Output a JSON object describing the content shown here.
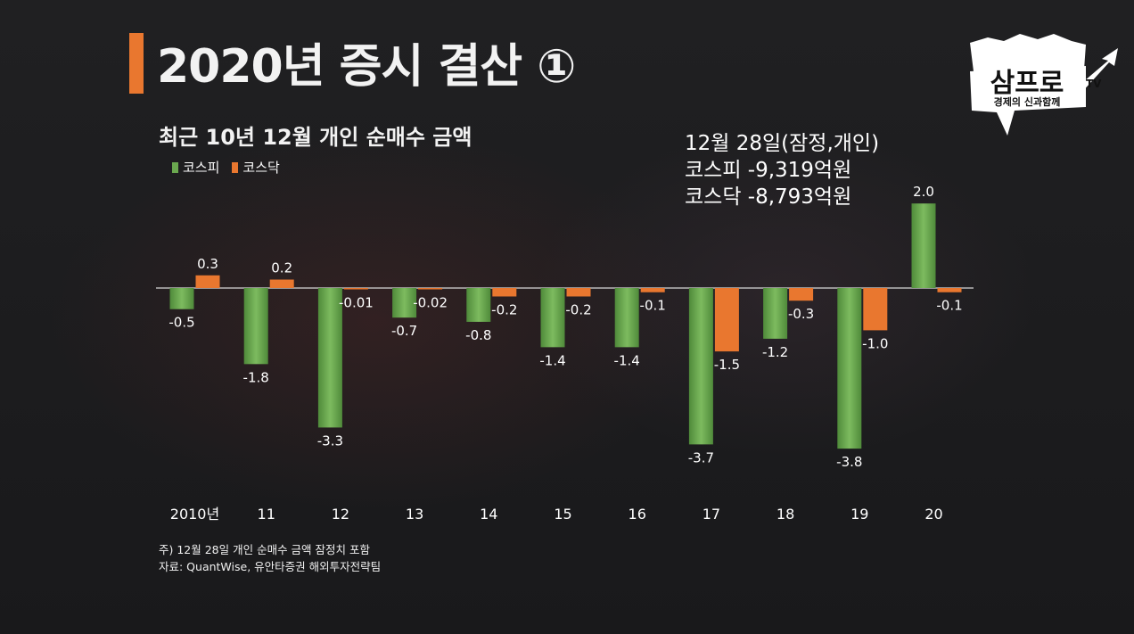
{
  "page": {
    "title": "2020년 증시 결산 ①",
    "subtitle": "최근 10년 12월 개인 순매수 금액",
    "annotation": [
      "12월 28일(잠정,개인)",
      "코스피 -9,319억원",
      "코스닥 -8,793억원"
    ],
    "footnote": [
      "주) 12월 28일 개인 순매수 금액 잠정치 포함",
      "자료: QuantWise, 유안타증권 해외투자전략팀"
    ],
    "logo": {
      "main": "삼프로",
      "tv": "TV",
      "tagline": "경제의 신과함께"
    }
  },
  "colors": {
    "kospi": "#6aa84f",
    "kosdaq": "#e9772f",
    "accent": "#e9772f"
  },
  "chart_data": {
    "type": "bar",
    "categories": [
      "2010년",
      "11",
      "12",
      "13",
      "14",
      "15",
      "16",
      "17",
      "18",
      "19",
      "20"
    ],
    "series": [
      {
        "name": "코스피",
        "values": [
          -0.5,
          -1.8,
          -3.3,
          -0.7,
          -0.8,
          -1.4,
          -1.4,
          -3.7,
          -1.2,
          -3.8,
          2.0
        ],
        "labels": [
          "-0.5",
          "-1.8",
          "-3.3",
          "-0.7",
          "-0.8",
          "-1.4",
          "-1.4",
          "-3.7",
          "-1.2",
          "-3.8",
          "2.0"
        ]
      },
      {
        "name": "코스닥",
        "values": [
          0.3,
          0.2,
          -0.01,
          -0.02,
          -0.2,
          -0.2,
          -0.1,
          -1.5,
          -0.3,
          -1.0,
          -0.1
        ],
        "labels": [
          "0.3",
          "0.2",
          "-0.01",
          "-0.02",
          "-0.2",
          "-0.2",
          "-0.1",
          "-1.5",
          "-0.3",
          "-1.0",
          "-0.1"
        ]
      }
    ],
    "legend": "top-left",
    "grid": false
  }
}
